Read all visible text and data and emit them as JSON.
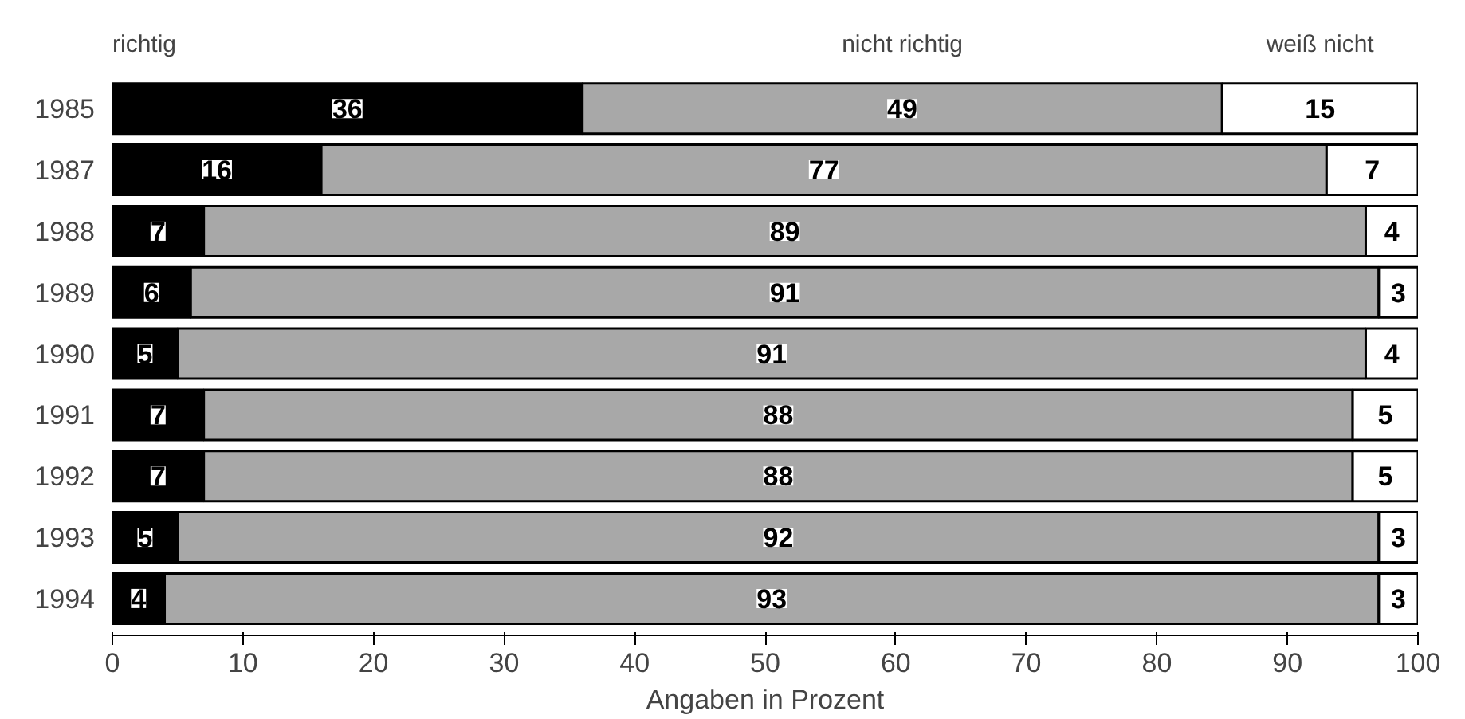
{
  "chart_data": {
    "type": "bar",
    "orientation": "horizontal",
    "stacked": true,
    "xlabel": "Angaben in Prozent",
    "categories": [
      "1985",
      "1987",
      "1988",
      "1989",
      "1990",
      "1991",
      "1992",
      "1993",
      "1994"
    ],
    "series": [
      {
        "name": "richtig",
        "color": "#000000",
        "values": [
          36,
          16,
          7,
          6,
          5,
          7,
          7,
          5,
          4
        ]
      },
      {
        "name": "nicht richtig",
        "color": "#a8a8a8",
        "values": [
          49,
          77,
          89,
          91,
          91,
          88,
          88,
          92,
          93
        ]
      },
      {
        "name": "weiß nicht",
        "color": "#ffffff",
        "values": [
          15,
          7,
          4,
          3,
          4,
          5,
          5,
          3,
          3
        ]
      }
    ],
    "xlim": [
      0,
      100
    ],
    "xticks": [
      0,
      10,
      20,
      30,
      40,
      50,
      60,
      70,
      80,
      90,
      100
    ],
    "data_labels": true,
    "legend": "top",
    "grid": false
  }
}
